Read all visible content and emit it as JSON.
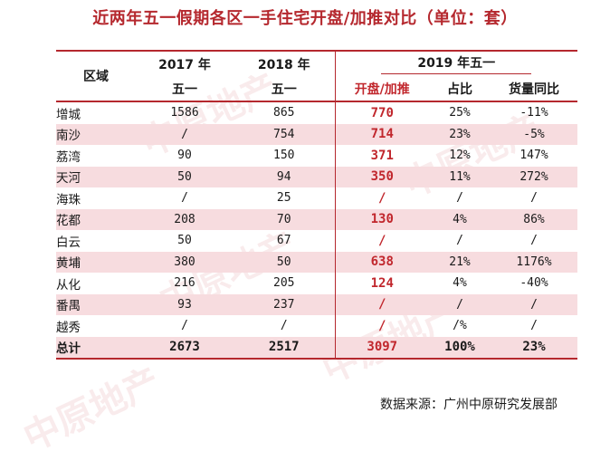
{
  "title": "近两年五一假期各区一手住宅开盘/加推对比（单位：套）",
  "header": {
    "region": "区域",
    "y2017": "2017 年",
    "y2017_sub": "五一",
    "y2018": "2018 年",
    "y2018_sub": "五一",
    "y2019": "2019 年五一",
    "col_launch": "开盘/加推",
    "col_share": "占比",
    "col_yoy": "货量同比"
  },
  "rows": [
    {
      "region": "增城",
      "y2017": "1586",
      "y2018": "865",
      "y2019": "770",
      "share": "25%",
      "yoy": "-11%"
    },
    {
      "region": "南沙",
      "y2017": "/",
      "y2018": "754",
      "y2019": "714",
      "share": "23%",
      "yoy": "-5%"
    },
    {
      "region": "荔湾",
      "y2017": "90",
      "y2018": "150",
      "y2019": "371",
      "share": "12%",
      "yoy": "147%"
    },
    {
      "region": "天河",
      "y2017": "50",
      "y2018": "94",
      "y2019": "350",
      "share": "11%",
      "yoy": "272%"
    },
    {
      "region": "海珠",
      "y2017": "/",
      "y2018": "25",
      "y2019": "/",
      "share": "/",
      "yoy": "/"
    },
    {
      "region": "花都",
      "y2017": "208",
      "y2018": "70",
      "y2019": "130",
      "share": "4%",
      "yoy": "86%"
    },
    {
      "region": "白云",
      "y2017": "50",
      "y2018": "67",
      "y2019": "/",
      "share": "/",
      "yoy": "/"
    },
    {
      "region": "黄埔",
      "y2017": "380",
      "y2018": "50",
      "y2019": "638",
      "share": "21%",
      "yoy": "1176%"
    },
    {
      "region": "从化",
      "y2017": "216",
      "y2018": "205",
      "y2019": "124",
      "share": "4%",
      "yoy": "-40%"
    },
    {
      "region": "番禺",
      "y2017": "93",
      "y2018": "237",
      "y2019": "/",
      "share": "/",
      "yoy": "/"
    },
    {
      "region": "越秀",
      "y2017": "/",
      "y2018": "/",
      "y2019": "/",
      "share": "/%",
      "yoy": "/"
    }
  ],
  "total": {
    "region": "总计",
    "y2017": "2673",
    "y2018": "2517",
    "y2019": "3097",
    "share": "100%",
    "yoy": "23%"
  },
  "source": "数据来源：广州中原研究发展部",
  "watermark": "中原地产",
  "colors": {
    "accent": "#b5282e",
    "highlight": "#c1272d",
    "stripe": "#f7dcdf"
  }
}
